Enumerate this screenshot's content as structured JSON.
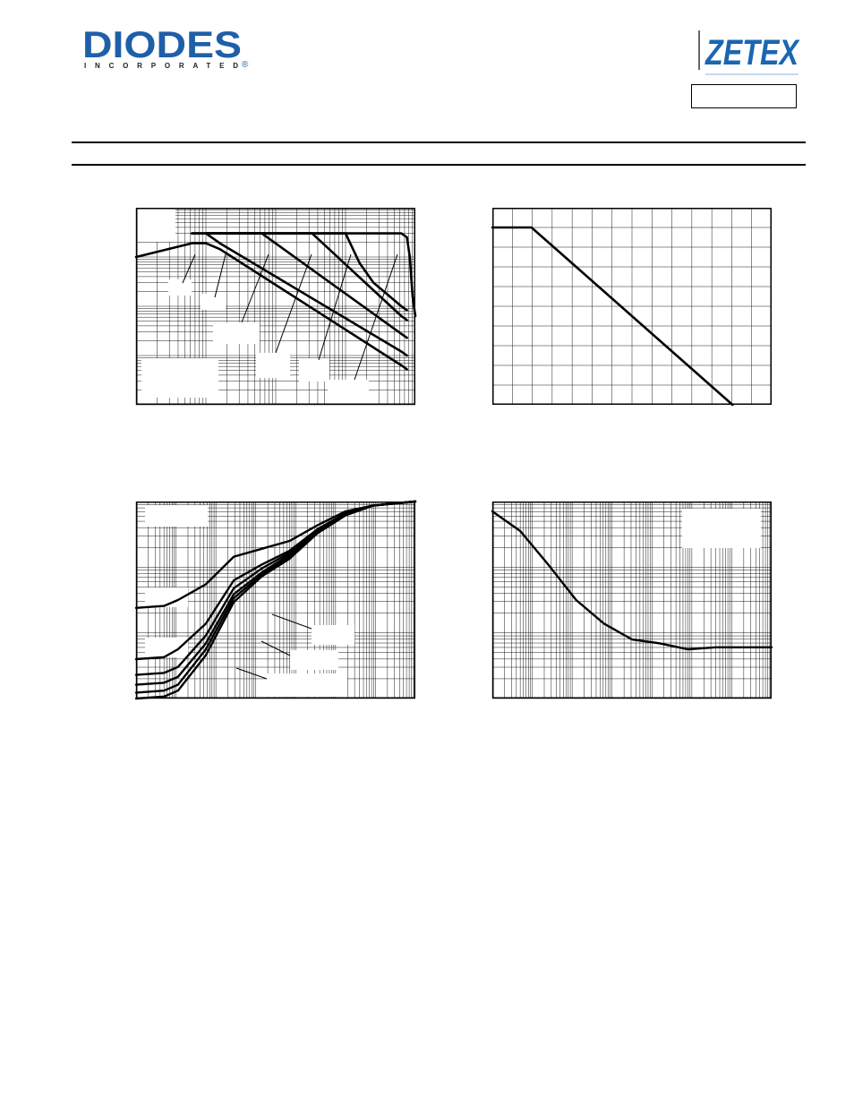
{
  "header": {
    "left_logo": {
      "name": "DIODES",
      "subtitle": "INCORPORATED",
      "mark": "®",
      "color": "#1f5fa8"
    },
    "right_logo": {
      "name": "ZETEX",
      "color": "#1a66b3"
    }
  },
  "chart_data": [
    {
      "type": "line",
      "x_scale": "log",
      "y_scale": "log",
      "grid": true,
      "series": [
        {
          "label_box": "box-1",
          "points": [
            [
              0,
              0.75
            ],
            [
              0.2,
              0.82
            ],
            [
              0.25,
              0.82
            ],
            [
              0.3,
              0.79
            ],
            [
              0.95,
              0.2
            ],
            [
              0.97,
              0.18
            ]
          ]
        },
        {
          "label_box": "box-2",
          "points": [
            [
              0.2,
              0.87
            ],
            [
              0.25,
              0.87
            ],
            [
              0.3,
              0.82
            ],
            [
              0.95,
              0.27
            ],
            [
              0.97,
              0.25
            ]
          ]
        },
        {
          "label_box": "box-3",
          "points": [
            [
              0.2,
              0.87
            ],
            [
              0.25,
              0.87
            ],
            [
              0.45,
              0.87
            ],
            [
              0.95,
              0.36
            ],
            [
              0.97,
              0.34
            ]
          ]
        },
        {
          "label_box": "box-4",
          "points": [
            [
              0.25,
              0.87
            ],
            [
              0.63,
              0.87
            ],
            [
              0.95,
              0.45
            ],
            [
              0.97,
              0.43
            ]
          ]
        },
        {
          "label_box": "box-5",
          "points": [
            [
              0.25,
              0.87
            ],
            [
              0.75,
              0.87
            ],
            [
              0.8,
              0.72
            ],
            [
              0.85,
              0.62
            ],
            [
              0.95,
              0.5
            ],
            [
              0.97,
              0.48
            ]
          ]
        },
        {
          "label_box": "box-6",
          "points": [
            [
              0.25,
              0.87
            ],
            [
              0.95,
              0.87
            ],
            [
              0.97,
              0.85
            ],
            [
              0.98,
              0.75
            ],
            [
              0.99,
              0.55
            ],
            [
              1.0,
              0.45
            ]
          ]
        }
      ]
    },
    {
      "type": "line",
      "x_scale": "linear",
      "y_scale": "linear",
      "grid": true,
      "series": [
        {
          "points": [
            [
              0,
              0.9
            ],
            [
              0.14,
              0.9
            ],
            [
              0.86,
              0.0
            ]
          ]
        }
      ]
    },
    {
      "type": "line",
      "x_scale": "log",
      "y_scale": "log",
      "grid": true,
      "series": [
        {
          "points": [
            [
              0,
              0.46
            ],
            [
              0.1,
              0.47
            ],
            [
              0.15,
              0.5
            ],
            [
              0.25,
              0.58
            ],
            [
              0.35,
              0.72
            ],
            [
              0.45,
              0.76
            ],
            [
              0.55,
              0.8
            ],
            [
              0.65,
              0.88
            ],
            [
              0.75,
              0.95
            ],
            [
              0.85,
              0.98
            ],
            [
              1.0,
              1.0
            ]
          ]
        },
        {
          "points": [
            [
              0,
              0.2
            ],
            [
              0.1,
              0.21
            ],
            [
              0.15,
              0.25
            ],
            [
              0.25,
              0.38
            ],
            [
              0.35,
              0.6
            ],
            [
              0.45,
              0.68
            ],
            [
              0.55,
              0.75
            ],
            [
              0.65,
              0.86
            ],
            [
              0.75,
              0.94
            ],
            [
              0.85,
              0.98
            ],
            [
              1.0,
              1.0
            ]
          ]
        },
        {
          "points": [
            [
              0,
              0.12
            ],
            [
              0.1,
              0.13
            ],
            [
              0.15,
              0.16
            ],
            [
              0.25,
              0.32
            ],
            [
              0.35,
              0.56
            ],
            [
              0.45,
              0.66
            ],
            [
              0.55,
              0.74
            ],
            [
              0.65,
              0.85
            ],
            [
              0.75,
              0.94
            ],
            [
              0.85,
              0.98
            ],
            [
              1.0,
              1.0
            ]
          ]
        },
        {
          "points": [
            [
              0,
              0.07
            ],
            [
              0.1,
              0.08
            ],
            [
              0.15,
              0.11
            ],
            [
              0.25,
              0.28
            ],
            [
              0.35,
              0.53
            ],
            [
              0.45,
              0.64
            ],
            [
              0.55,
              0.73
            ],
            [
              0.65,
              0.85
            ],
            [
              0.75,
              0.94
            ],
            [
              0.85,
              0.98
            ],
            [
              1.0,
              1.0
            ]
          ]
        },
        {
          "points": [
            [
              0,
              0.03
            ],
            [
              0.1,
              0.04
            ],
            [
              0.15,
              0.07
            ],
            [
              0.25,
              0.25
            ],
            [
              0.35,
              0.51
            ],
            [
              0.45,
              0.63
            ],
            [
              0.55,
              0.72
            ],
            [
              0.65,
              0.84
            ],
            [
              0.75,
              0.93
            ],
            [
              0.85,
              0.98
            ],
            [
              1.0,
              1.0
            ]
          ]
        },
        {
          "points": [
            [
              0,
              0.0
            ],
            [
              0.1,
              0.01
            ],
            [
              0.15,
              0.04
            ],
            [
              0.25,
              0.22
            ],
            [
              0.35,
              0.49
            ],
            [
              0.45,
              0.62
            ],
            [
              0.55,
              0.71
            ],
            [
              0.65,
              0.84
            ],
            [
              0.75,
              0.93
            ],
            [
              0.85,
              0.98
            ],
            [
              1.0,
              1.0
            ]
          ]
        }
      ]
    },
    {
      "type": "line",
      "x_scale": "log",
      "y_scale": "log",
      "grid": true,
      "series": [
        {
          "points": [
            [
              0,
              0.95
            ],
            [
              0.1,
              0.85
            ],
            [
              0.2,
              0.68
            ],
            [
              0.3,
              0.5
            ],
            [
              0.4,
              0.38
            ],
            [
              0.5,
              0.3
            ],
            [
              0.6,
              0.28
            ],
            [
              0.7,
              0.25
            ],
            [
              0.8,
              0.26
            ],
            [
              0.9,
              0.26
            ],
            [
              1.0,
              0.26
            ]
          ]
        }
      ]
    }
  ]
}
